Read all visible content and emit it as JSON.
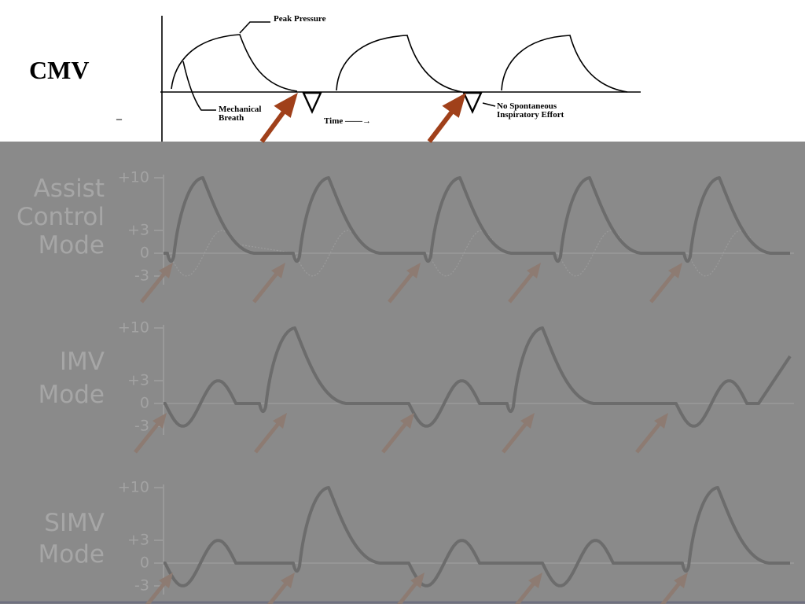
{
  "top": {
    "title": "CMV",
    "dash": "–",
    "peak_label": "Peak Pressure",
    "mech_label": [
      "Mechanical",
      "Breath"
    ],
    "time_label": "Time ——→",
    "effort_label": [
      "No Spontaneous",
      "Inspiratory Effort"
    ]
  },
  "panels": [
    {
      "label": [
        "Assist",
        "Control",
        "Mode"
      ],
      "ticks": [
        "+10",
        "+3",
        "0",
        "-3"
      ]
    },
    {
      "label": [
        "IMV",
        "Mode"
      ],
      "ticks": [
        "+10",
        "+3",
        "0",
        "-3"
      ]
    },
    {
      "label": [
        "SIMV",
        "Mode"
      ],
      "ticks": [
        "+10",
        "+3",
        "0",
        "-3"
      ]
    }
  ]
}
